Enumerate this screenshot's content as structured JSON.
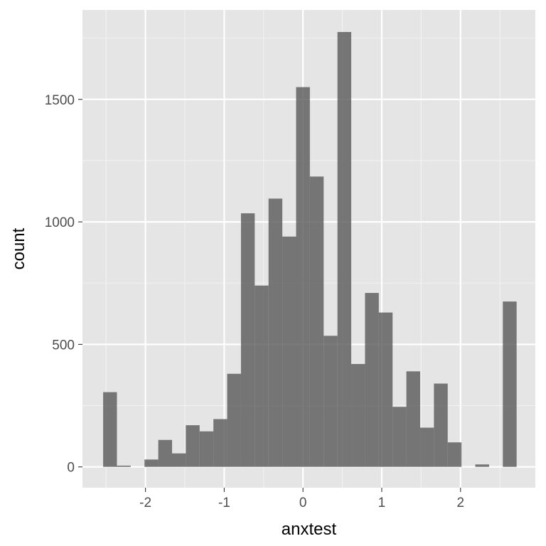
{
  "chart_data": {
    "type": "bar",
    "subtype": "histogram",
    "title": "",
    "xlabel": "anxtest",
    "ylabel": "count",
    "xlim": [
      -2.8,
      2.95
    ],
    "ylim": [
      -85,
      1865
    ],
    "x_ticks": [
      -2,
      -1,
      0,
      1,
      2
    ],
    "y_ticks": [
      0,
      500,
      1000,
      1500
    ],
    "bin_width": 0.175,
    "bins": [
      {
        "x": -2.45,
        "count": 305
      },
      {
        "x": -2.275,
        "count": 5
      },
      {
        "x": -2.1,
        "count": 0
      },
      {
        "x": -1.925,
        "count": 30
      },
      {
        "x": -1.75,
        "count": 110
      },
      {
        "x": -1.575,
        "count": 55
      },
      {
        "x": -1.4,
        "count": 170
      },
      {
        "x": -1.225,
        "count": 145
      },
      {
        "x": -1.05,
        "count": 195
      },
      {
        "x": -0.875,
        "count": 380
      },
      {
        "x": -0.7,
        "count": 1035
      },
      {
        "x": -0.525,
        "count": 740
      },
      {
        "x": -0.35,
        "count": 1095
      },
      {
        "x": -0.175,
        "count": 940
      },
      {
        "x": 0.0,
        "count": 1550
      },
      {
        "x": 0.175,
        "count": 1185
      },
      {
        "x": 0.35,
        "count": 535
      },
      {
        "x": 0.525,
        "count": 1775
      },
      {
        "x": 0.7,
        "count": 420
      },
      {
        "x": 0.875,
        "count": 710
      },
      {
        "x": 1.05,
        "count": 630
      },
      {
        "x": 1.225,
        "count": 245
      },
      {
        "x": 1.4,
        "count": 390
      },
      {
        "x": 1.575,
        "count": 160
      },
      {
        "x": 1.75,
        "count": 340
      },
      {
        "x": 1.925,
        "count": 100
      },
      {
        "x": 2.1,
        "count": 0
      },
      {
        "x": 2.275,
        "count": 10
      },
      {
        "x": 2.45,
        "count": 0
      },
      {
        "x": 2.625,
        "count": 675
      }
    ],
    "grid": true,
    "colors": {
      "panel_background": "#e5e5e5",
      "grid_major": "#ffffff",
      "grid_minor": "#f2f2f2",
      "bar_fill": "#595959",
      "bar_opacity": 0.8,
      "tick_text": "#4d4d4d",
      "axis_title": "#000000"
    }
  }
}
